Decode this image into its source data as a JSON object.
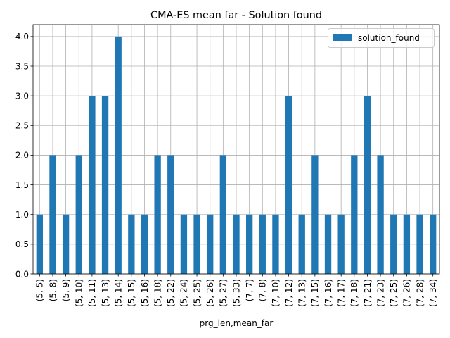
{
  "chart_data": {
    "type": "bar",
    "title": "CMA-ES mean far - Solution found",
    "xlabel": "prg_len,mean_far",
    "ylabel": "",
    "ylim": [
      0,
      4.2
    ],
    "yticks": [
      "0.0",
      "0.5",
      "1.0",
      "1.5",
      "2.0",
      "2.5",
      "3.0",
      "3.5",
      "4.0"
    ],
    "grid": true,
    "legend_position": "top-right",
    "bar_color": "#1f77b4",
    "categories": [
      "(5, 5)",
      "(5, 8)",
      "(5, 9)",
      "(5, 10)",
      "(5, 11)",
      "(5, 13)",
      "(5, 14)",
      "(5, 15)",
      "(5, 16)",
      "(5, 18)",
      "(5, 22)",
      "(5, 24)",
      "(5, 25)",
      "(5, 26)",
      "(5, 27)",
      "(5, 33)",
      "(7, 7)",
      "(7, 8)",
      "(7, 10)",
      "(7, 12)",
      "(7, 13)",
      "(7, 15)",
      "(7, 16)",
      "(7, 17)",
      "(7, 18)",
      "(7, 21)",
      "(7, 23)",
      "(7, 25)",
      "(7, 26)",
      "(7, 28)",
      "(7, 34)"
    ],
    "series": [
      {
        "name": "solution_found",
        "values": [
          1,
          2,
          1,
          2,
          3,
          3,
          4,
          1,
          1,
          2,
          2,
          1,
          1,
          1,
          2,
          1,
          1,
          1,
          1,
          3,
          1,
          2,
          1,
          1,
          2,
          3,
          2,
          1,
          1,
          1,
          1
        ]
      }
    ]
  }
}
